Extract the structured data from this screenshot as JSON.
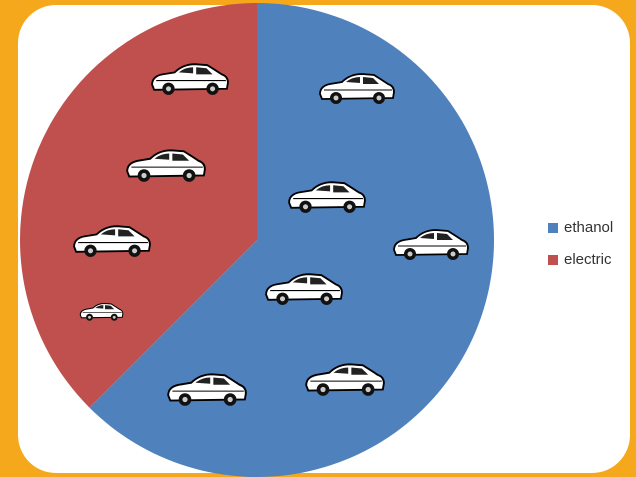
{
  "chart_data": {
    "type": "pie",
    "categories": [
      "ethanol",
      "electric"
    ],
    "values": [
      62.5,
      37.5
    ],
    "colors": [
      "#4f81bd",
      "#c0504d"
    ],
    "legend": "right"
  }
}
